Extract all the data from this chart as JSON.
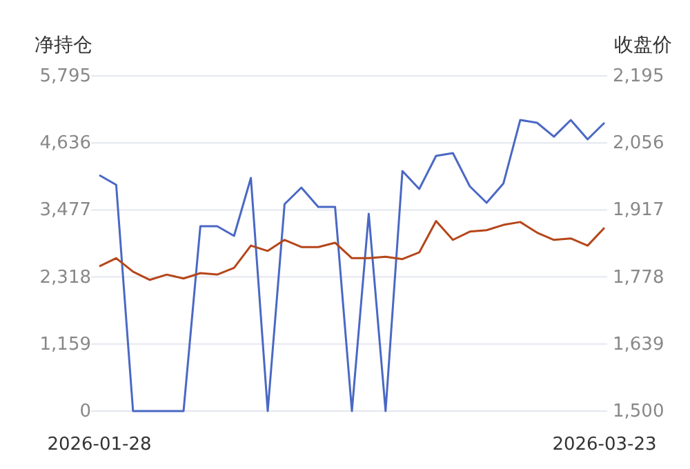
{
  "chart_data": {
    "type": "line",
    "ylabel": "净持仓",
    "y2label": "收盘价",
    "categories": [
      "2026-01-28",
      null,
      null,
      null,
      null,
      null,
      null,
      null,
      null,
      null,
      null,
      null,
      null,
      null,
      null,
      null,
      null,
      null,
      null,
      null,
      null,
      null,
      null,
      null,
      null,
      null,
      null,
      null,
      null,
      null,
      "2026-03-23"
    ],
    "series": [
      {
        "color": "#4a68c4",
        "values": [
          4078,
          3911,
          0,
          0,
          0,
          0,
          3196,
          3196,
          3029,
          4030,
          0,
          3577,
          3863,
          3530,
          3530,
          0,
          3410,
          0,
          4150,
          3840,
          4412,
          4460,
          3887,
          3601,
          3935,
          5032,
          4984,
          4745,
          5032,
          4698,
          4984
        ]
      },
      {
        "color": "#b5461a",
        "axis": "y2",
        "values": [
          1800,
          1817,
          1789,
          1772,
          1783,
          1775,
          1786,
          1783,
          1797,
          1843,
          1832,
          1855,
          1840,
          1840,
          1849,
          1817,
          1817,
          1820,
          1815,
          1829,
          1894,
          1855,
          1872,
          1875,
          1886,
          1892,
          1870,
          1855,
          1858,
          1843,
          1880
        ]
      }
    ],
    "ylim": [
      0,
      5795
    ],
    "yticks": [
      0,
      {
        "value": 1159,
        "label": "1,159"
      },
      {
        "value": 2318,
        "label": "2,318"
      },
      {
        "value": 3477,
        "label": "3,477"
      },
      {
        "value": 4636,
        "label": "4,636"
      },
      {
        "value": 5795,
        "label": "5,795"
      }
    ],
    "y2lim": [
      1500,
      2195
    ],
    "y2ticks": [
      {
        "value": 1500,
        "label": "1,500"
      },
      {
        "value": 1639,
        "label": "1,639"
      },
      {
        "value": 1778,
        "label": "1,778"
      },
      {
        "value": 1917,
        "label": "1,917"
      },
      {
        "value": 2056,
        "label": "2,056"
      },
      {
        "value": 2195,
        "label": "2,195"
      }
    ],
    "grid": "y",
    "marker": "none",
    "line_style": "solid"
  }
}
